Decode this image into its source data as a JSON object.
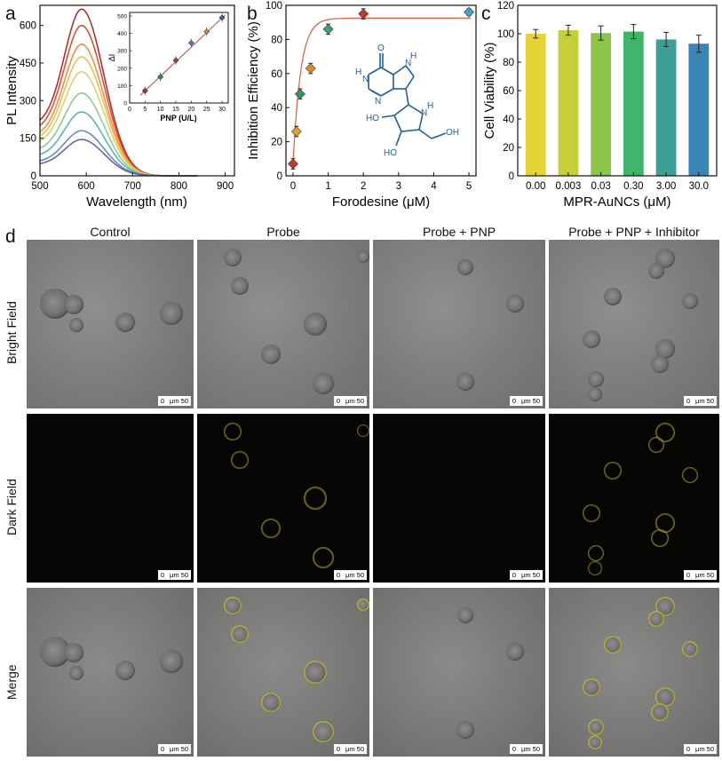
{
  "panels": {
    "a": "a",
    "b": "b",
    "c": "c",
    "d": "d"
  },
  "chart_a": {
    "type": "line",
    "xlabel": "Wavelength (nm)",
    "ylabel": "PL Intensity",
    "xlim": [
      500,
      920
    ],
    "ylim": [
      0,
      680
    ],
    "xticks": [
      "500",
      "600",
      "700",
      "800",
      "900"
    ],
    "yticks": [
      "0",
      "150",
      "300",
      "450",
      "600"
    ],
    "peak_wavelength": 590,
    "series": [
      {
        "peak": 665,
        "color": "#b52424"
      },
      {
        "peak": 600,
        "color": "#d84a2c"
      },
      {
        "peak": 525,
        "color": "#ee8a38"
      },
      {
        "peak": 475,
        "color": "#f2b84f"
      },
      {
        "peak": 415,
        "color": "#cdd46a"
      },
      {
        "peak": 330,
        "color": "#8cc68c"
      },
      {
        "peak": 255,
        "color": "#4fb3a8"
      },
      {
        "peak": 180,
        "color": "#5c86c2"
      },
      {
        "peak": 145,
        "color": "#6a5a9c"
      }
    ],
    "inset": {
      "type": "scatter",
      "xlabel": "PNP (U/L)",
      "ylabel": "ΔI",
      "xlim": [
        0,
        32
      ],
      "ylim": [
        0,
        520
      ],
      "xticks": [
        "0",
        "5",
        "10",
        "15",
        "20",
        "25",
        "30"
      ],
      "yticks": [
        "0",
        "100",
        "200",
        "300",
        "400",
        "500"
      ],
      "x": [
        5,
        10,
        15,
        20,
        25,
        30
      ],
      "y": [
        70,
        150,
        245,
        345,
        410,
        490
      ],
      "point_colors": [
        "#9a3a3a",
        "#2f8f5a",
        "#8a4a4a",
        "#3a8ac0",
        "#d8902a",
        "#3a5fb0"
      ],
      "fit_color": "#c63b3b"
    }
  },
  "chart_b": {
    "type": "scatter",
    "xlabel": "Forodesine (μM)",
    "ylabel": "Inhibition Efficiency (%)",
    "xlim": [
      -0.2,
      5.2
    ],
    "ylim": [
      0,
      100
    ],
    "xticks": [
      "0",
      "1",
      "2",
      "3",
      "4",
      "5"
    ],
    "yticks": [
      "0",
      "20",
      "40",
      "60",
      "80",
      "100"
    ],
    "x": [
      0,
      0.1,
      0.2,
      0.5,
      1,
      2,
      5
    ],
    "y": [
      7,
      26,
      48,
      63,
      86,
      95,
      96
    ],
    "err": [
      3,
      3,
      3,
      3,
      3,
      3,
      2
    ],
    "point_colors": [
      "#c0392b",
      "#e0a030",
      "#2e9a60",
      "#e08a20",
      "#3aa080",
      "#c0392b",
      "#4aa0c8"
    ],
    "fit_color": "#e05a4a",
    "fit_plateau": 92.5,
    "fit_rate": 4.6,
    "molecule_color": "#1f5f9a",
    "molecule_labels": {
      "o": "O",
      "h1": "H",
      "n1": "N",
      "n2": "N",
      "n3": "N",
      "h2": "H",
      "nh": "H",
      "n4": "N",
      "ho1": "HO",
      "ho2": "HO",
      "oh": "OH"
    }
  },
  "chart_c": {
    "type": "bar",
    "xlabel": "MPR-AuNCs (μM)",
    "ylabel": "Cell Viability (%)",
    "ylim": [
      0,
      120
    ],
    "yticks": [
      "0",
      "20",
      "40",
      "60",
      "80",
      "100",
      "120"
    ],
    "categories": [
      "0.00",
      "0.003",
      "0.03",
      "0.30",
      "3.00",
      "30.0"
    ],
    "values": [
      100,
      102.5,
      100.5,
      101.5,
      96,
      93
    ],
    "err": [
      3,
      3.5,
      5,
      5,
      5,
      6
    ],
    "colors": [
      "#e6d33a",
      "#c4cf3a",
      "#8cc54a",
      "#3fb46a",
      "#3f9f96",
      "#3a85b8"
    ]
  },
  "panel_d": {
    "columns": [
      "Control",
      "Probe",
      "Probe + PNP",
      "Probe + PNP + Inhibitor"
    ],
    "rows": [
      "Bright Field",
      "Dark Field",
      "Merge"
    ],
    "scale_zero": "0",
    "scale_label": "μm 50"
  }
}
